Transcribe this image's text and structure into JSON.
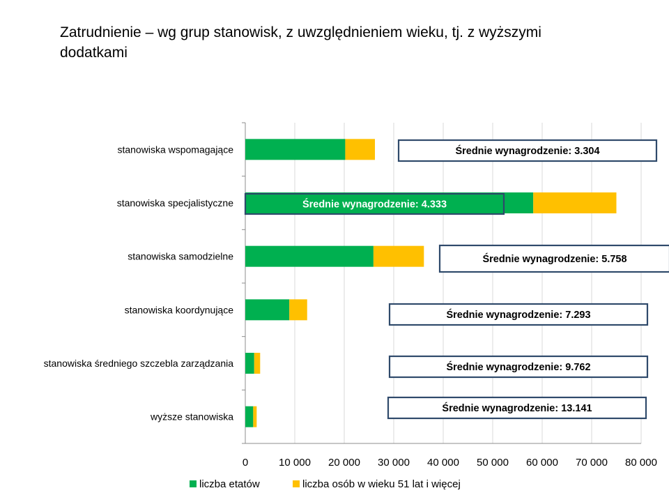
{
  "title": "Zatrudnienie – wg grup stanowisk, z uwzględnieniem wieku, tj. z wyższymi dodatkami",
  "chart_data": {
    "type": "bar",
    "orientation": "horizontal",
    "stacked": true,
    "title": "Zatrudnienie – wg grup stanowisk, z uwzględnieniem wieku, tj. z wyższymi dodatkami",
    "categories": [
      "stanowiska wspomagające",
      "stanowiska specjalistyczne",
      "stanowiska samodzielne",
      "stanowiska koordynujące",
      "stanowiska  średniego szczebla zarządzania",
      "wyższe stanowiska"
    ],
    "series": [
      {
        "name": "liczba etatów",
        "color": "#00b050",
        "values": [
          20200,
          58200,
          25900,
          8900,
          1800,
          1600
        ]
      },
      {
        "name": "liczba osób w wieku 51 lat i więcej",
        "color": "#ffc000",
        "values": [
          6000,
          16800,
          10200,
          3600,
          1200,
          700
        ]
      }
    ],
    "xlim": [
      0,
      80000
    ],
    "xticks": [
      0,
      10000,
      20000,
      30000,
      40000,
      50000,
      60000,
      70000,
      80000
    ],
    "xtick_labels": [
      "0",
      "10 000",
      "20 000",
      "30 000",
      "40 000",
      "50 000",
      "60 000",
      "70 000",
      "80 000"
    ],
    "grid": "vertical",
    "legend": "bottom",
    "annotations": [
      "Średnie wynagrodzenie: 3.304",
      "Średnie wynagrodzenie: 4.333",
      "Średnie wynagrodzenie: 5.758",
      "Średnie wynagrodzenie: 7.293",
      "Średnie wynagrodzenie: 9.762",
      "Średnie wynagrodzenie: 13.141"
    ]
  }
}
